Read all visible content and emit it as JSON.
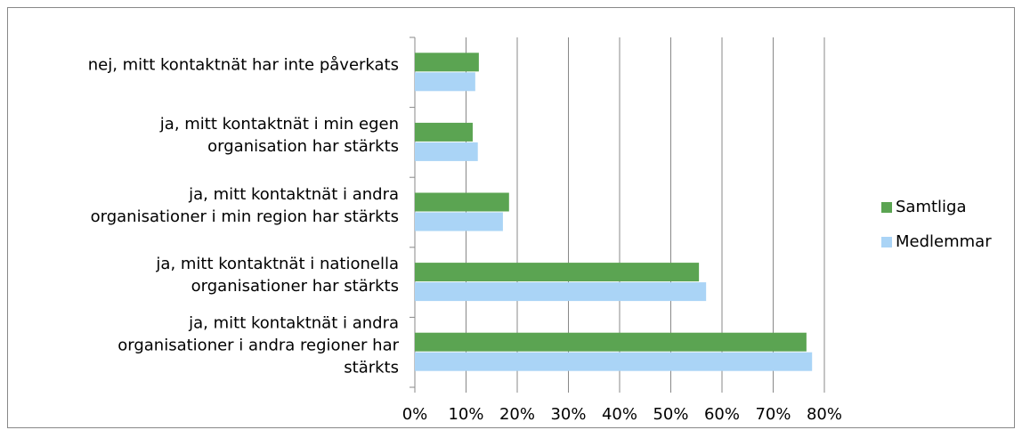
{
  "chart_data": {
    "type": "bar",
    "orientation": "horizontal",
    "categories": [
      "nej, mitt kontaktnät har inte påverkats",
      "ja, mitt kontaktnät i min egen\norganisation har stärkts",
      "ja, mitt kontaktnät i andra\norganisationer i min region har stärkts",
      "ja, mitt kontaktnät i nationella\norganisationer har stärkts",
      "ja, mitt kontaktnät i andra\norganisationer i andra regioner har\nstärkts"
    ],
    "series": [
      {
        "name": "Samtliga",
        "color": "#5ba452",
        "values": [
          12.5,
          11.3,
          18.4,
          55.5,
          76.5
        ]
      },
      {
        "name": "Medlemmar",
        "color": "#aad4f6",
        "values": [
          11.8,
          12.3,
          17.2,
          56.9,
          77.6
        ]
      }
    ],
    "xlim": [
      0,
      80
    ],
    "xticks": [
      {
        "value": 0,
        "label": "0%"
      },
      {
        "value": 10,
        "label": "10%"
      },
      {
        "value": 20,
        "label": "20%"
      },
      {
        "value": 30,
        "label": "30%"
      },
      {
        "value": 40,
        "label": "40%"
      },
      {
        "value": 50,
        "label": "50%"
      },
      {
        "value": 60,
        "label": "60%"
      },
      {
        "value": 70,
        "label": "70%"
      },
      {
        "value": 80,
        "label": "80%"
      }
    ],
    "grid": true,
    "legend": "right"
  }
}
